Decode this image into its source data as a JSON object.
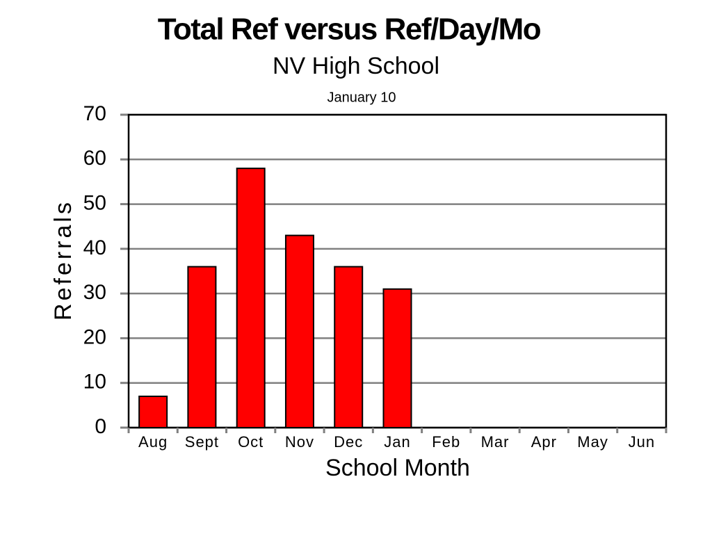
{
  "chart_data": {
    "type": "bar",
    "title": "Total Ref versus Ref/Day/Mo",
    "subtitle": "NV High School",
    "annotation": "January 10",
    "y_label": "Referrals",
    "x_label": "School Month",
    "categories": [
      "Aug",
      "Sept",
      "Oct",
      "Nov",
      "Dec",
      "Jan",
      "Feb",
      "Mar",
      "Apr",
      "May",
      "Jun"
    ],
    "values": [
      7,
      36,
      58,
      43,
      36,
      31,
      null,
      null,
      null,
      null,
      null
    ],
    "color": "#ff0000",
    "ylim": [
      0,
      70
    ],
    "yticks": [
      0,
      10,
      20,
      30,
      40,
      50,
      60,
      70
    ],
    "grid": true
  }
}
